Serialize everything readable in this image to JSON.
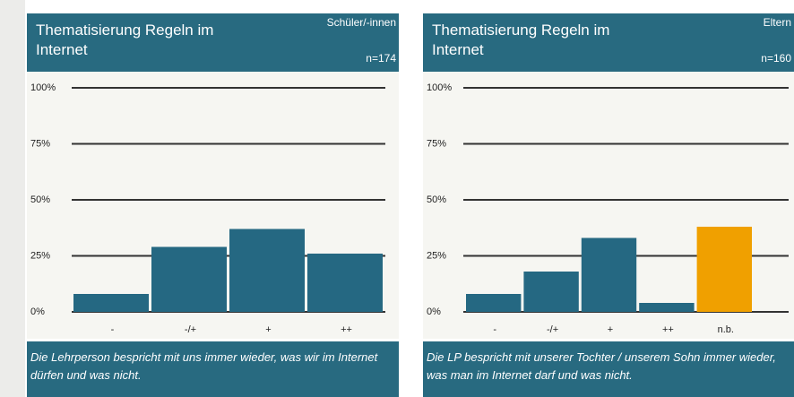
{
  "chart_data": [
    {
      "type": "bar",
      "title": "Thematisierung Regeln im Internet",
      "group": "Schüler/-innen",
      "sample": "n=174",
      "categories": [
        "-",
        "-/+",
        "+",
        "++"
      ],
      "values": [
        8,
        29,
        37,
        26
      ],
      "colors": [
        "#256882",
        "#256882",
        "#256882",
        "#256882"
      ],
      "ylim": [
        0,
        100
      ],
      "yticks": [
        {
          "value": 0,
          "label": "0%"
        },
        {
          "value": 25,
          "label": "25%"
        },
        {
          "value": 50,
          "label": "50%"
        },
        {
          "value": 75,
          "label": "75%"
        },
        {
          "value": 100,
          "label": "100%"
        }
      ],
      "grid": true,
      "caption": "Die Lehrperson bespricht mit uns immer wieder, was wir im Internet dürfen und was nicht."
    },
    {
      "type": "bar",
      "title": "Thematisierung Regeln im Internet",
      "group": "Eltern",
      "sample": "n=160",
      "categories": [
        "-",
        "-/+",
        "+",
        "++",
        "n.b."
      ],
      "values": [
        8,
        18,
        33,
        4,
        38
      ],
      "colors": [
        "#256882",
        "#256882",
        "#256882",
        "#256882",
        "#f0a000"
      ],
      "ylim": [
        0,
        100
      ],
      "yticks": [
        {
          "value": 0,
          "label": "0%"
        },
        {
          "value": 25,
          "label": "25%"
        },
        {
          "value": 50,
          "label": "50%"
        },
        {
          "value": 75,
          "label": "75%"
        },
        {
          "value": 100,
          "label": "100%"
        }
      ],
      "grid": true,
      "caption": "Die LP bespricht mit unserer Tochter / unserem Sohn immer wieder, was man im Internet darf und was nicht."
    }
  ]
}
